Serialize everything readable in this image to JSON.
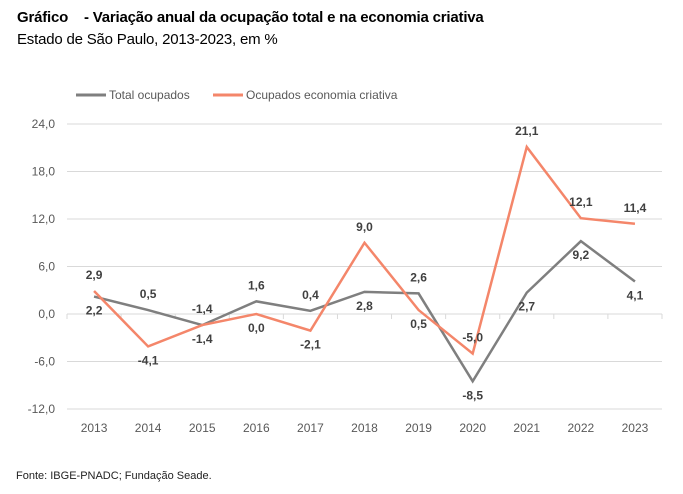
{
  "header": {
    "title": "Gráfico    - Variação anual da ocupação total e na economia criativa",
    "subtitle": "Estado de São Paulo, 2013-2023, em %"
  },
  "footer": {
    "source": "Fonte: IBGE-PNADC; Fundação Seade."
  },
  "chart_data": {
    "type": "line",
    "title": "Variação anual da ocupação total e na economia criativa",
    "subtitle": "Estado de São Paulo, 2013-2023, em %",
    "xlabel": "",
    "ylabel": "",
    "categories": [
      "2013",
      "2014",
      "2015",
      "2016",
      "2017",
      "2018",
      "2019",
      "2020",
      "2021",
      "2022",
      "2023"
    ],
    "ylim": [
      -12,
      24
    ],
    "yticks": [
      24,
      18,
      12,
      6,
      0,
      -6,
      -12
    ],
    "ytick_labels": [
      "24,0",
      "18,0",
      "12,0",
      "6,0",
      "0,0",
      "-6,0",
      "-12,0"
    ],
    "grid": true,
    "legend_position": "top-left",
    "series": [
      {
        "name": "Total ocupados",
        "color": "#7f7f7f",
        "values": [
          2.2,
          0.5,
          -1.4,
          1.6,
          0.4,
          2.8,
          2.6,
          -8.5,
          2.7,
          9.2,
          4.1
        ],
        "labels": [
          "2,2",
          "0,5",
          "-1,4",
          "1,6",
          "0,4",
          "2,8",
          "2,6",
          "-8,5",
          "2,7",
          "9,2",
          "4,1"
        ],
        "label_pos": [
          "below",
          "above",
          "above",
          "above",
          "above",
          "below",
          "above",
          "below",
          "below",
          "below",
          "below"
        ]
      },
      {
        "name": "Ocupados economia criativa",
        "color": "#f4866a",
        "values": [
          2.9,
          -4.1,
          -1.4,
          0.0,
          -2.1,
          9.0,
          0.5,
          -5.0,
          21.1,
          12.1,
          11.4
        ],
        "labels": [
          "2,9",
          "-4,1",
          "-1,4",
          "0,0",
          "-2,1",
          "9,0",
          "0,5",
          "-5,0",
          "21,1",
          "12,1",
          "11,4"
        ],
        "label_pos": [
          "above",
          "below",
          "below",
          "below",
          "below",
          "above",
          "below",
          "above",
          "above",
          "above",
          "above"
        ]
      }
    ]
  }
}
